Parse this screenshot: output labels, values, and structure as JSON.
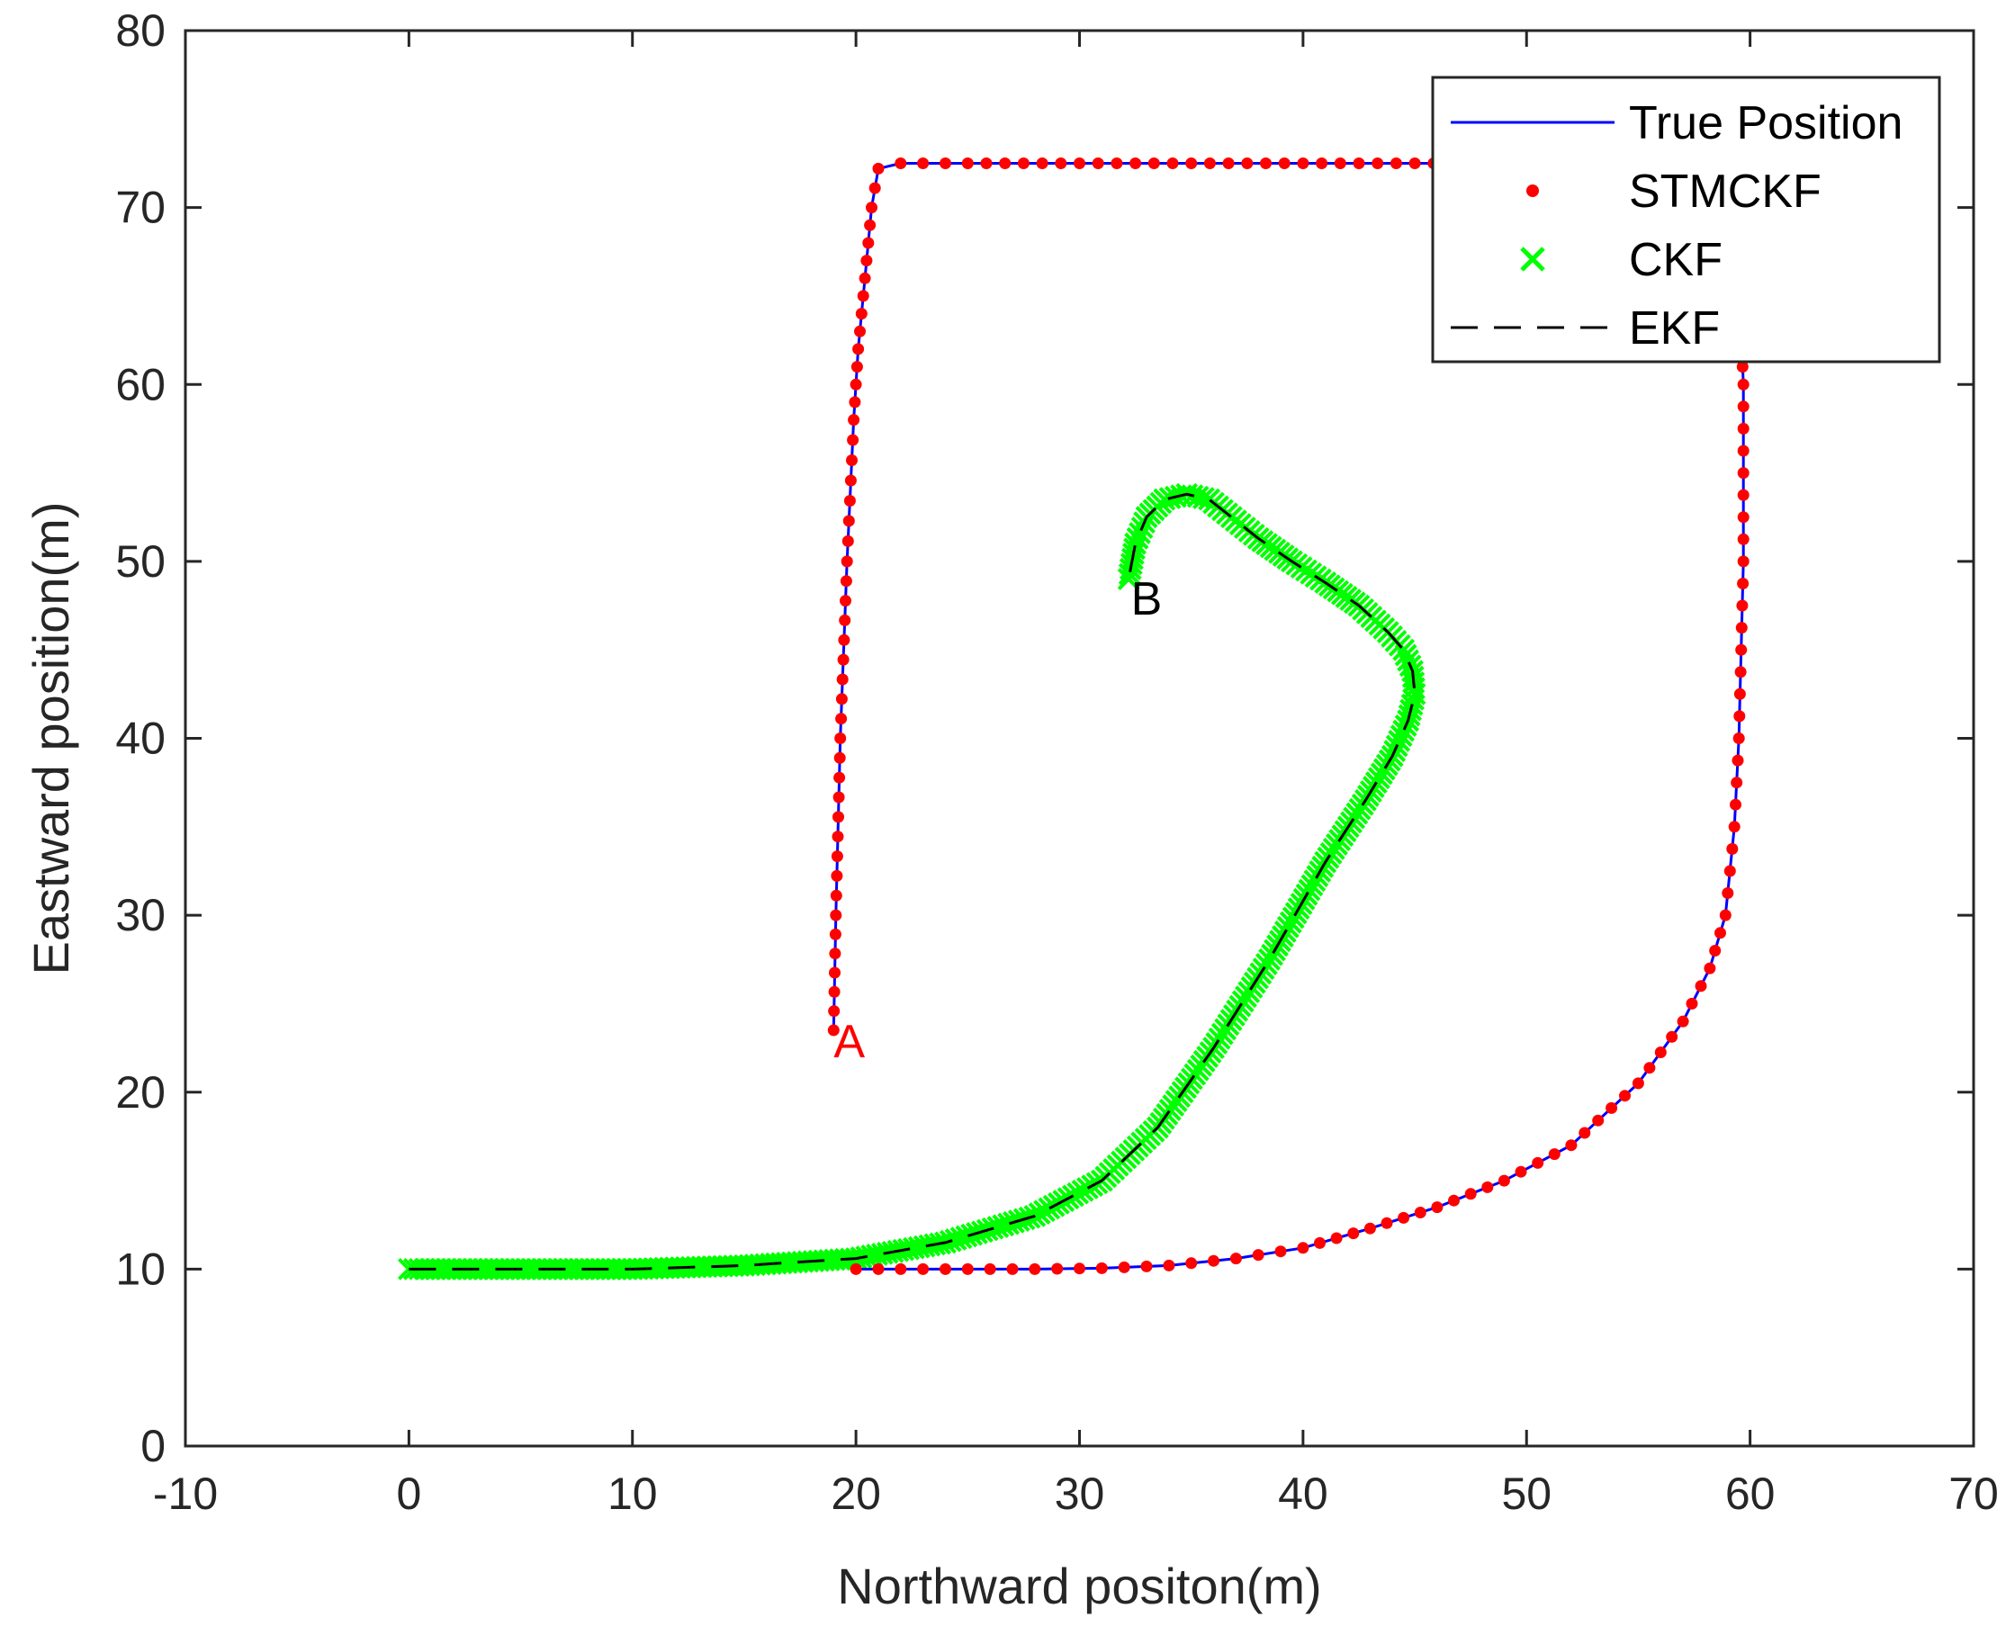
{
  "chart_data": {
    "type": "line",
    "xlabel": "Northward positon(m)",
    "ylabel": "Eastward position(m)",
    "xlim": [
      -10,
      70
    ],
    "ylim": [
      0,
      80
    ],
    "xticks": [
      -10,
      0,
      10,
      20,
      30,
      40,
      50,
      60,
      70
    ],
    "yticks": [
      0,
      10,
      20,
      30,
      40,
      50,
      60,
      70,
      80
    ],
    "grid": false,
    "legend_position": "top-right",
    "series": [
      {
        "name": "True Position",
        "style": "solid-line",
        "color": "#0000ff",
        "x": [
          19.0,
          19.1,
          19.3,
          19.6,
          19.9,
          20.1,
          20.4,
          20.7,
          21.0,
          22,
          25,
          30,
          35,
          40,
          45,
          50,
          55,
          57,
          58.5,
          59.2,
          59.5,
          59.6,
          59.7,
          59.7,
          59.7,
          59.6,
          59.5,
          59.3,
          58.9,
          58.2,
          57.0,
          55.0,
          52.0,
          49.0,
          46.0,
          43.0,
          40.0,
          37.0,
          34.0,
          31.0,
          28.0,
          25.0,
          22.0,
          20.0
        ],
        "y": [
          23.5,
          30,
          40,
          50,
          58,
          62,
          66,
          70,
          72.2,
          72.5,
          72.5,
          72.5,
          72.5,
          72.5,
          72.5,
          72.5,
          72.5,
          72.4,
          71.5,
          69.0,
          66.0,
          63.0,
          60.0,
          55.0,
          50.0,
          45.0,
          40.0,
          35.0,
          30.0,
          27.0,
          24.0,
          20.5,
          17.0,
          15.0,
          13.5,
          12.3,
          11.2,
          10.6,
          10.2,
          10.05,
          10.0,
          10.0,
          10.0,
          10.0
        ]
      },
      {
        "name": "STMCKF",
        "style": "dots",
        "color": "#ff0000",
        "x": [
          19.0,
          19.1,
          19.3,
          19.6,
          19.9,
          20.1,
          20.4,
          20.7,
          21.0,
          22,
          25,
          30,
          35,
          40,
          45,
          50,
          55,
          57,
          58.5,
          59.2,
          59.5,
          59.6,
          59.7,
          59.7,
          59.7,
          59.6,
          59.5,
          59.3,
          58.9,
          58.2,
          57.0,
          55.0,
          52.0,
          49.0,
          46.0,
          43.0,
          40.0,
          37.0,
          34.0,
          31.0,
          28.0,
          25.0,
          22.0,
          20.0
        ],
        "y": [
          23.5,
          30,
          40,
          50,
          58,
          62,
          66,
          70,
          72.2,
          72.5,
          72.5,
          72.5,
          72.5,
          72.5,
          72.5,
          72.5,
          72.5,
          72.4,
          71.5,
          69.0,
          66.0,
          63.0,
          60.0,
          55.0,
          50.0,
          45.0,
          40.0,
          35.0,
          30.0,
          27.0,
          24.0,
          20.5,
          17.0,
          15.0,
          13.5,
          12.3,
          11.2,
          10.6,
          10.2,
          10.05,
          10.0,
          10.0,
          10.0,
          10.0
        ]
      },
      {
        "name": "CKF",
        "style": "x-markers",
        "color": "#00ff00",
        "x": [
          0,
          5,
          10,
          15,
          20,
          24,
          28,
          31,
          33.5,
          36,
          38.5,
          41,
          42.8,
          44,
          44.7,
          45.0,
          44.9,
          44.5,
          43.8,
          42.5,
          41.0,
          39.5,
          38.0,
          36.8,
          35.8,
          34.8,
          33.8,
          33.0,
          32.5,
          32.2
        ],
        "y": [
          10,
          10,
          10,
          10.2,
          10.6,
          11.5,
          13,
          15,
          18,
          22.5,
          27.5,
          33,
          36.5,
          39,
          41,
          42.5,
          43.8,
          45.0,
          46.0,
          47.5,
          48.8,
          50.0,
          51.3,
          52.5,
          53.5,
          53.8,
          53.5,
          52.5,
          51.0,
          49.0
        ]
      },
      {
        "name": "EKF",
        "style": "dashed-line",
        "color": "#000000",
        "x": [
          0,
          5,
          10,
          15,
          20,
          24,
          28,
          31,
          33.5,
          36,
          38.5,
          41,
          42.8,
          44,
          44.7,
          45.0,
          44.9,
          44.5,
          43.8,
          42.5,
          41.0,
          39.5,
          38.0,
          36.8,
          35.8,
          34.8,
          33.8,
          33.0,
          32.5,
          32.2
        ],
        "y": [
          10,
          10,
          10,
          10.2,
          10.6,
          11.5,
          13,
          15,
          18,
          22.5,
          27.5,
          33,
          36.5,
          39,
          41,
          42.5,
          43.8,
          45.0,
          46.0,
          47.5,
          48.8,
          50.0,
          51.3,
          52.5,
          53.5,
          53.8,
          53.5,
          52.5,
          51.0,
          49.0
        ]
      }
    ],
    "annotations": [
      {
        "text": "A",
        "x": 19.7,
        "y": 23.0,
        "color": "#ff0000"
      },
      {
        "text": "B",
        "x": 33.0,
        "y": 48.0,
        "color": "#000000"
      }
    ]
  }
}
